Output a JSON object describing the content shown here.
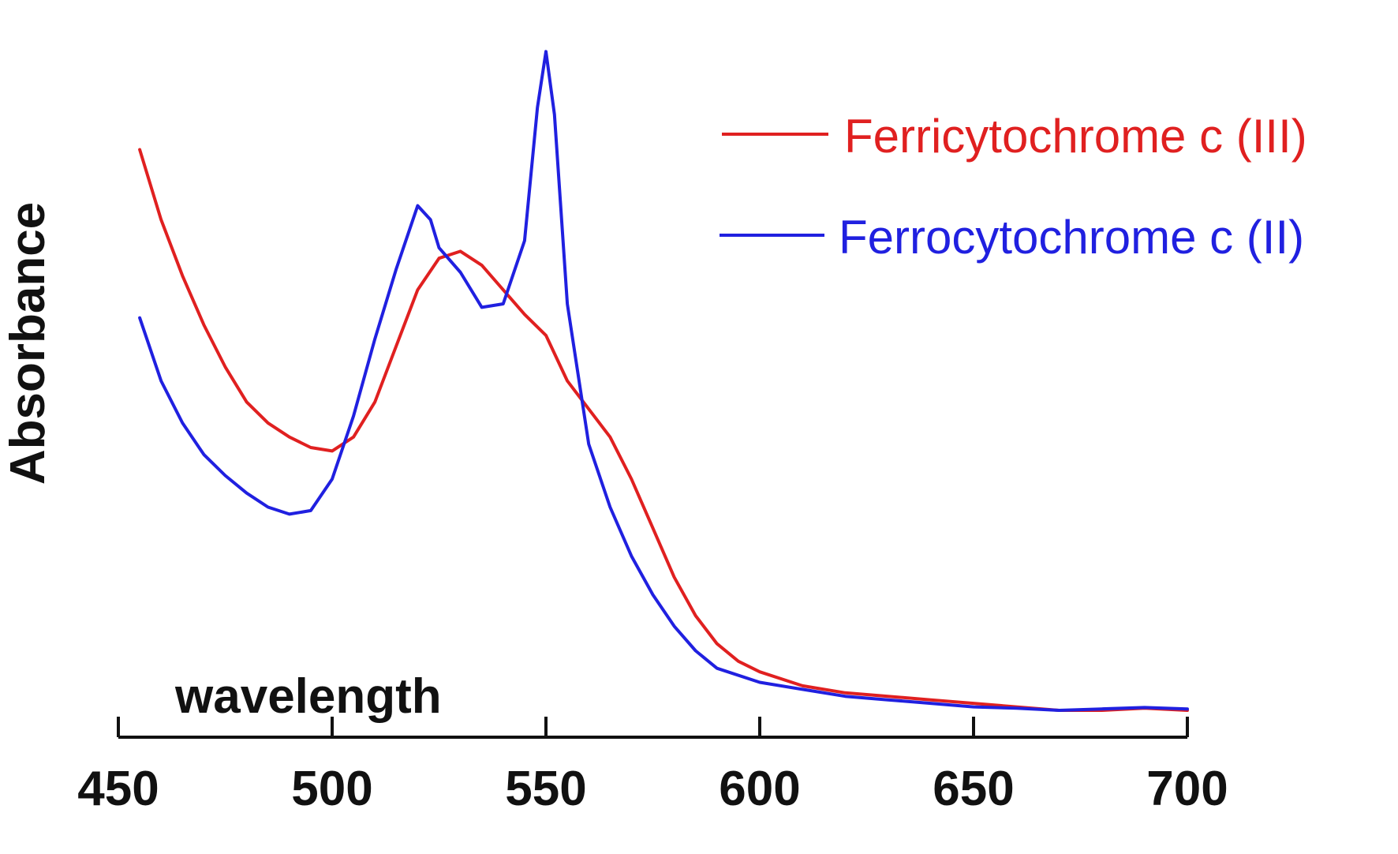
{
  "chart_data": {
    "type": "line",
    "title": "",
    "xlabel": "wavelength",
    "ylabel": "Absorbance",
    "xlim": [
      450,
      700
    ],
    "ylim": [
      0,
      1
    ],
    "x_ticks": [
      450,
      500,
      550,
      600,
      650,
      700
    ],
    "x_tick_labels": [
      "450",
      "500",
      "550",
      "600",
      "650",
      "700"
    ],
    "y_ticks_visible": false,
    "grid": false,
    "legend_position": "top-right",
    "series": [
      {
        "name": "Ferricytochrome c (III)",
        "color": "#e02020",
        "points": [
          [
            455,
            0.8
          ],
          [
            460,
            0.7
          ],
          [
            465,
            0.62
          ],
          [
            470,
            0.55
          ],
          [
            475,
            0.49
          ],
          [
            480,
            0.44
          ],
          [
            485,
            0.41
          ],
          [
            490,
            0.39
          ],
          [
            495,
            0.375
          ],
          [
            500,
            0.37
          ],
          [
            505,
            0.39
          ],
          [
            510,
            0.44
          ],
          [
            515,
            0.52
          ],
          [
            520,
            0.6
          ],
          [
            525,
            0.645
          ],
          [
            530,
            0.655
          ],
          [
            535,
            0.635
          ],
          [
            540,
            0.6
          ],
          [
            545,
            0.565
          ],
          [
            550,
            0.535
          ],
          [
            555,
            0.47
          ],
          [
            560,
            0.43
          ],
          [
            565,
            0.39
          ],
          [
            570,
            0.33
          ],
          [
            575,
            0.26
          ],
          [
            580,
            0.19
          ],
          [
            585,
            0.135
          ],
          [
            590,
            0.095
          ],
          [
            595,
            0.07
          ],
          [
            600,
            0.055
          ],
          [
            610,
            0.035
          ],
          [
            620,
            0.025
          ],
          [
            630,
            0.02
          ],
          [
            640,
            0.015
          ],
          [
            650,
            0.01
          ],
          [
            660,
            0.005
          ],
          [
            670,
            0.0
          ],
          [
            680,
            0.0
          ],
          [
            690,
            0.003
          ],
          [
            700,
            0.0
          ]
        ]
      },
      {
        "name": "Ferrocytochrome c (II)",
        "color": "#2020e0",
        "points": [
          [
            455,
            0.56
          ],
          [
            460,
            0.47
          ],
          [
            465,
            0.41
          ],
          [
            470,
            0.365
          ],
          [
            475,
            0.335
          ],
          [
            480,
            0.31
          ],
          [
            485,
            0.29
          ],
          [
            490,
            0.28
          ],
          [
            495,
            0.285
          ],
          [
            500,
            0.33
          ],
          [
            505,
            0.42
          ],
          [
            510,
            0.53
          ],
          [
            515,
            0.63
          ],
          [
            520,
            0.72
          ],
          [
            523,
            0.7
          ],
          [
            525,
            0.66
          ],
          [
            530,
            0.625
          ],
          [
            535,
            0.575
          ],
          [
            540,
            0.58
          ],
          [
            545,
            0.67
          ],
          [
            548,
            0.86
          ],
          [
            550,
            0.94
          ],
          [
            552,
            0.85
          ],
          [
            555,
            0.58
          ],
          [
            560,
            0.38
          ],
          [
            565,
            0.29
          ],
          [
            570,
            0.22
          ],
          [
            575,
            0.165
          ],
          [
            580,
            0.12
          ],
          [
            585,
            0.085
          ],
          [
            590,
            0.06
          ],
          [
            600,
            0.04
          ],
          [
            610,
            0.03
          ],
          [
            620,
            0.02
          ],
          [
            630,
            0.015
          ],
          [
            640,
            0.01
          ],
          [
            650,
            0.005
          ],
          [
            660,
            0.003
          ],
          [
            670,
            0.0
          ],
          [
            680,
            0.002
          ],
          [
            690,
            0.004
          ],
          [
            700,
            0.002
          ]
        ]
      }
    ]
  }
}
